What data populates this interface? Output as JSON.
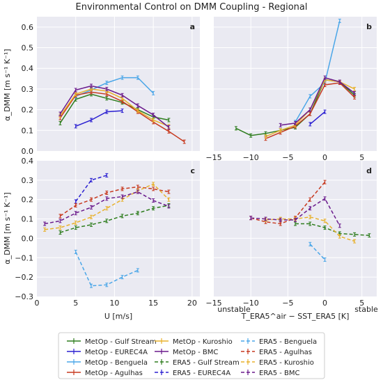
{
  "title": "Environmental Control on DMM Coupling - Regional",
  "colors": {
    "Gulf Stream": "#2e7d1e",
    "EUREC4A": "#2a1fd1",
    "Benguela": "#4aa6e8",
    "Agulhas": "#c7391f",
    "Kuroshio": "#e8b12c",
    "BMC": "#6a1a8c",
    "panel_bg": "#eaeaf2",
    "grid": "#ffffff"
  },
  "labels": {
    "ylabel": "α_DMM [m s⁻¹ K⁻¹]",
    "xlabel_left": "U [m/s]",
    "xlabel_right": "T_ERA5^air − SST_ERA5 [K]",
    "unstable": "unstable",
    "stable": "stable"
  },
  "legend": {
    "placement": "bottom-center",
    "entries": [
      {
        "label": "MetOp - Gulf Stream",
        "region": "Gulf Stream",
        "dashed": false
      },
      {
        "label": "MetOp - EUREC4A",
        "region": "EUREC4A",
        "dashed": false
      },
      {
        "label": "MetOp - Benguela",
        "region": "Benguela",
        "dashed": false
      },
      {
        "label": "MetOp - Agulhas",
        "region": "Agulhas",
        "dashed": false
      },
      {
        "label": "MetOp - Kuroshio",
        "region": "Kuroshio",
        "dashed": false
      },
      {
        "label": "MetOp - BMC",
        "region": "BMC",
        "dashed": false
      },
      {
        "label": "ERA5 - Gulf Stream",
        "region": "Gulf Stream",
        "dashed": true
      },
      {
        "label": "ERA5 - EUREC4A",
        "region": "EUREC4A",
        "dashed": true
      },
      {
        "label": "ERA5 - Benguela",
        "region": "Benguela",
        "dashed": true
      },
      {
        "label": "ERA5 - Agulhas",
        "region": "Agulhas",
        "dashed": true
      },
      {
        "label": "ERA5 - Kuroshio",
        "region": "Kuroshio",
        "dashed": true
      },
      {
        "label": "ERA5 - BMC",
        "region": "BMC",
        "dashed": true
      }
    ]
  },
  "chart_data": [
    {
      "panel": "a",
      "type": "line",
      "grid": true,
      "xlim": [
        0,
        21
      ],
      "ylim": [
        0,
        0.65
      ],
      "xticks": [
        0,
        5,
        10,
        15,
        20
      ],
      "xtick_labels_shown": false,
      "yticks": [
        0,
        0.1,
        0.2,
        0.3,
        0.4,
        0.5,
        0.6
      ],
      "ytick_labels": [
        "0.0",
        "0.1",
        "0.2",
        "0.3",
        "0.4",
        "0.5",
        "0.6"
      ],
      "series": [
        {
          "region": "Gulf Stream",
          "dashed": false,
          "x": [
            3,
            5,
            7,
            9,
            11,
            13,
            15,
            17
          ],
          "y": [
            0.135,
            0.25,
            0.275,
            0.255,
            0.235,
            0.2,
            0.165,
            0.15
          ]
        },
        {
          "region": "EUREC4A",
          "dashed": false,
          "x": [
            5,
            7,
            9,
            11
          ],
          "y": [
            0.12,
            0.15,
            0.19,
            0.195
          ]
        },
        {
          "region": "Benguela",
          "dashed": false,
          "x": [
            5,
            7,
            9,
            11,
            13,
            15
          ],
          "y": [
            0.265,
            0.295,
            0.33,
            0.355,
            0.355,
            0.28
          ]
        },
        {
          "region": "Agulhas",
          "dashed": false,
          "x": [
            3,
            5,
            7,
            9,
            11,
            13,
            15,
            17,
            19
          ],
          "y": [
            0.16,
            0.27,
            0.285,
            0.275,
            0.24,
            0.19,
            0.14,
            0.095,
            0.045
          ]
        },
        {
          "region": "Kuroshio",
          "dashed": false,
          "x": [
            3,
            5,
            7,
            9,
            11,
            13,
            15,
            17
          ],
          "y": [
            0.17,
            0.275,
            0.3,
            0.29,
            0.255,
            0.195,
            0.15,
            0.12
          ]
        },
        {
          "region": "BMC",
          "dashed": false,
          "x": [
            3,
            5,
            7,
            9,
            11,
            13,
            15,
            17
          ],
          "y": [
            0.18,
            0.295,
            0.315,
            0.3,
            0.27,
            0.22,
            0.175,
            0.115
          ]
        }
      ]
    },
    {
      "panel": "b",
      "type": "line",
      "grid": true,
      "xlim": [
        -15,
        7
      ],
      "ylim": [
        0,
        0.65
      ],
      "xticks": [
        -15,
        -10,
        -5,
        0,
        5
      ],
      "xtick_labels_shown": true,
      "xtick_labels": [
        "−15",
        "−10",
        "−5",
        "0",
        "5"
      ],
      "yticks": [
        0,
        0.1,
        0.2,
        0.3,
        0.4,
        0.5,
        0.6
      ],
      "ytick_labels_shown": false,
      "series": [
        {
          "region": "Gulf Stream",
          "dashed": false,
          "x": [
            -12,
            -10,
            -8,
            -6,
            -4,
            -2,
            0,
            2,
            4
          ],
          "y": [
            0.11,
            0.075,
            0.085,
            0.1,
            0.115,
            0.18,
            0.345,
            0.335,
            0.27
          ]
        },
        {
          "region": "EUREC4A",
          "dashed": false,
          "x": [
            -2,
            0
          ],
          "y": [
            0.13,
            0.19
          ]
        },
        {
          "region": "Benguela",
          "dashed": false,
          "x": [
            -4,
            -2,
            0,
            2
          ],
          "y": [
            0.14,
            0.265,
            0.33,
            0.63
          ]
        },
        {
          "region": "Agulhas",
          "dashed": false,
          "x": [
            -8,
            -6,
            -4,
            -2,
            0,
            2,
            4
          ],
          "y": [
            0.06,
            0.09,
            0.12,
            0.18,
            0.32,
            0.33,
            0.26
          ]
        },
        {
          "region": "Kuroshio",
          "dashed": false,
          "x": [
            -8,
            -6,
            -4,
            -2,
            0,
            2,
            4
          ],
          "y": [
            0.07,
            0.1,
            0.125,
            0.2,
            0.345,
            0.335,
            0.3
          ]
        },
        {
          "region": "BMC",
          "dashed": false,
          "x": [
            -6,
            -4,
            -2,
            0,
            2,
            4
          ],
          "y": [
            0.125,
            0.135,
            0.2,
            0.355,
            0.335,
            0.28
          ]
        }
      ]
    },
    {
      "panel": "c",
      "type": "line",
      "grid": true,
      "xlim": [
        0,
        21
      ],
      "ylim": [
        -0.3,
        0.4
      ],
      "xticks": [
        0,
        5,
        10,
        15,
        20
      ],
      "xtick_labels": [
        "0",
        "5",
        "10",
        "15",
        "20"
      ],
      "yticks": [
        -0.3,
        -0.2,
        -0.1,
        0,
        0.1,
        0.2,
        0.3,
        0.4
      ],
      "ytick_labels": [
        "−0.3",
        "−0.2",
        "−0.1",
        "0.0",
        "0.1",
        "0.2",
        "0.3",
        "0.4"
      ],
      "series": [
        {
          "region": "Gulf Stream",
          "dashed": true,
          "x": [
            3,
            5,
            7,
            9,
            11,
            13,
            15,
            17
          ],
          "y": [
            0.03,
            0.055,
            0.07,
            0.09,
            0.115,
            0.13,
            0.155,
            0.17
          ]
        },
        {
          "region": "EUREC4A",
          "dashed": true,
          "x": [
            5,
            7,
            9
          ],
          "y": [
            0.19,
            0.3,
            0.325
          ]
        },
        {
          "region": "Benguela",
          "dashed": true,
          "x": [
            5,
            7,
            9,
            11,
            13
          ],
          "y": [
            -0.07,
            -0.245,
            -0.24,
            -0.2,
            -0.165
          ]
        },
        {
          "region": "Agulhas",
          "dashed": true,
          "x": [
            3,
            5,
            7,
            9,
            11,
            13,
            15,
            17
          ],
          "y": [
            0.115,
            0.17,
            0.2,
            0.235,
            0.255,
            0.265,
            0.255,
            0.24
          ]
        },
        {
          "region": "Kuroshio",
          "dashed": true,
          "x": [
            1,
            3,
            5,
            7,
            9,
            11,
            13,
            15,
            17
          ],
          "y": [
            0.045,
            0.055,
            0.08,
            0.11,
            0.155,
            0.2,
            0.245,
            0.28,
            0.2
          ]
        },
        {
          "region": "BMC",
          "dashed": true,
          "x": [
            1,
            3,
            5,
            7,
            9,
            11,
            13,
            15,
            17
          ],
          "y": [
            0.075,
            0.09,
            0.13,
            0.16,
            0.205,
            0.215,
            0.24,
            0.195,
            0.165
          ]
        }
      ]
    },
    {
      "panel": "d",
      "type": "line",
      "grid": true,
      "xlim": [
        -15,
        7
      ],
      "ylim": [
        -0.3,
        0.4
      ],
      "xticks": [
        -15,
        -10,
        -5,
        0,
        5
      ],
      "xtick_labels": [
        "−15",
        "−10",
        "−5",
        "0",
        "5"
      ],
      "yticks": [
        -0.3,
        -0.2,
        -0.1,
        0,
        0.1,
        0.2,
        0.3,
        0.4
      ],
      "ytick_labels_shown": false,
      "series": [
        {
          "region": "Gulf Stream",
          "dashed": true,
          "x": [
            -4,
            -2,
            0,
            2,
            4,
            6
          ],
          "y": [
            0.075,
            0.075,
            0.055,
            0.025,
            0.02,
            0.015
          ]
        },
        {
          "region": "Benguela",
          "dashed": true,
          "x": [
            -2,
            0
          ],
          "y": [
            -0.03,
            -0.11
          ]
        },
        {
          "region": "Agulhas",
          "dashed": true,
          "x": [
            -10,
            -8,
            -6,
            -4,
            -2,
            0
          ],
          "y": [
            0.105,
            0.085,
            0.075,
            0.105,
            0.2,
            0.29
          ]
        },
        {
          "region": "Kuroshio",
          "dashed": true,
          "x": [
            -8,
            -6,
            -4,
            -2,
            0,
            2,
            4
          ],
          "y": [
            0.095,
            0.1,
            0.1,
            0.11,
            0.09,
            0.01,
            -0.015
          ]
        },
        {
          "region": "BMC",
          "dashed": true,
          "x": [
            -10,
            -8,
            -6,
            -4,
            -2,
            0,
            2
          ],
          "y": [
            0.105,
            0.1,
            0.095,
            0.095,
            0.155,
            0.205,
            0.065
          ]
        }
      ]
    }
  ]
}
